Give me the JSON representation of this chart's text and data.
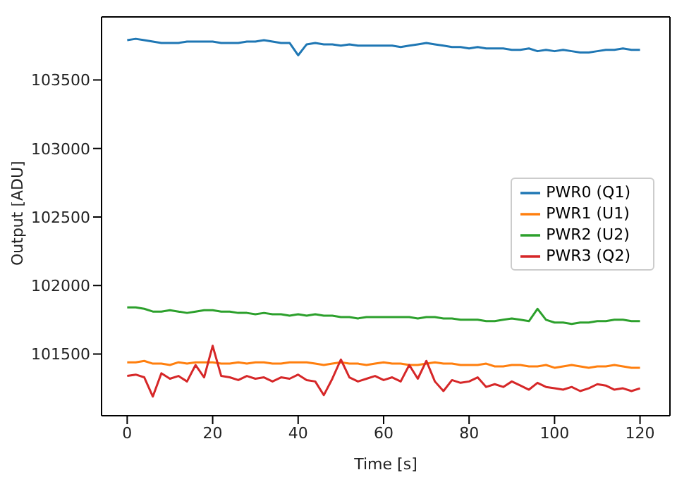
{
  "chart_data": {
    "type": "line",
    "xlabel": "Time [s]",
    "ylabel": "Output [ADU]",
    "x": [
      0,
      2,
      4,
      6,
      8,
      10,
      12,
      14,
      16,
      18,
      20,
      22,
      24,
      26,
      28,
      30,
      32,
      34,
      36,
      38,
      40,
      42,
      44,
      46,
      48,
      50,
      52,
      54,
      56,
      58,
      60,
      62,
      64,
      66,
      68,
      70,
      72,
      74,
      76,
      78,
      80,
      82,
      84,
      86,
      88,
      90,
      92,
      94,
      96,
      98,
      100,
      102,
      104,
      106,
      108,
      110,
      112,
      114,
      116,
      118,
      120
    ],
    "series": [
      {
        "name": "PWR0 (Q1)",
        "color": "#1f77b4",
        "values": [
          103790,
          103800,
          103790,
          103780,
          103770,
          103770,
          103770,
          103780,
          103780,
          103780,
          103780,
          103770,
          103770,
          103770,
          103780,
          103780,
          103790,
          103780,
          103770,
          103770,
          103680,
          103760,
          103770,
          103760,
          103760,
          103750,
          103760,
          103750,
          103750,
          103750,
          103750,
          103750,
          103740,
          103750,
          103760,
          103770,
          103760,
          103750,
          103740,
          103740,
          103730,
          103740,
          103730,
          103730,
          103730,
          103720,
          103720,
          103730,
          103710,
          103720,
          103710,
          103720,
          103710,
          103700,
          103700,
          103710,
          103720,
          103720,
          103730,
          103720,
          103720
        ]
      },
      {
        "name": "PWR1 (U1)",
        "color": "#ff7f0e",
        "values": [
          101440,
          101440,
          101450,
          101430,
          101430,
          101420,
          101440,
          101430,
          101440,
          101440,
          101440,
          101430,
          101430,
          101440,
          101430,
          101440,
          101440,
          101430,
          101430,
          101440,
          101440,
          101440,
          101430,
          101420,
          101430,
          101440,
          101430,
          101430,
          101420,
          101430,
          101440,
          101430,
          101430,
          101420,
          101420,
          101430,
          101440,
          101430,
          101430,
          101420,
          101420,
          101420,
          101430,
          101410,
          101410,
          101420,
          101420,
          101410,
          101410,
          101420,
          101400,
          101410,
          101420,
          101410,
          101400,
          101410,
          101410,
          101420,
          101410,
          101400,
          101400
        ]
      },
      {
        "name": "PWR2 (U2)",
        "color": "#2ca02c",
        "values": [
          101840,
          101840,
          101830,
          101810,
          101810,
          101820,
          101810,
          101800,
          101810,
          101820,
          101820,
          101810,
          101810,
          101800,
          101800,
          101790,
          101800,
          101790,
          101790,
          101780,
          101790,
          101780,
          101790,
          101780,
          101780,
          101770,
          101770,
          101760,
          101770,
          101770,
          101770,
          101770,
          101770,
          101770,
          101760,
          101770,
          101770,
          101760,
          101760,
          101750,
          101750,
          101750,
          101740,
          101740,
          101750,
          101760,
          101750,
          101740,
          101830,
          101750,
          101730,
          101730,
          101720,
          101730,
          101730,
          101740,
          101740,
          101750,
          101750,
          101740,
          101740
        ]
      },
      {
        "name": "PWR3 (Q2)",
        "color": "#d62728",
        "values": [
          101340,
          101350,
          101330,
          101190,
          101360,
          101320,
          101340,
          101300,
          101420,
          101330,
          101560,
          101340,
          101330,
          101310,
          101340,
          101320,
          101330,
          101300,
          101330,
          101320,
          101350,
          101310,
          101300,
          101200,
          101320,
          101460,
          101330,
          101300,
          101320,
          101340,
          101310,
          101330,
          101300,
          101420,
          101320,
          101450,
          101300,
          101230,
          101310,
          101290,
          101300,
          101330,
          101260,
          101280,
          101260,
          101300,
          101270,
          101240,
          101290,
          101260,
          101250,
          101240,
          101260,
          101230,
          101250,
          101280,
          101270,
          101240,
          101250,
          101230,
          101250
        ]
      }
    ],
    "xlim": [
      -6,
      127
    ],
    "ylim": [
      101050,
      103960
    ],
    "xticks": [
      0,
      20,
      40,
      60,
      80,
      100,
      120
    ],
    "yticks": [
      101500,
      102000,
      102500,
      103000,
      103500
    ],
    "grid": false,
    "legend": "right",
    "marker": "none",
    "line_style": "solid"
  }
}
